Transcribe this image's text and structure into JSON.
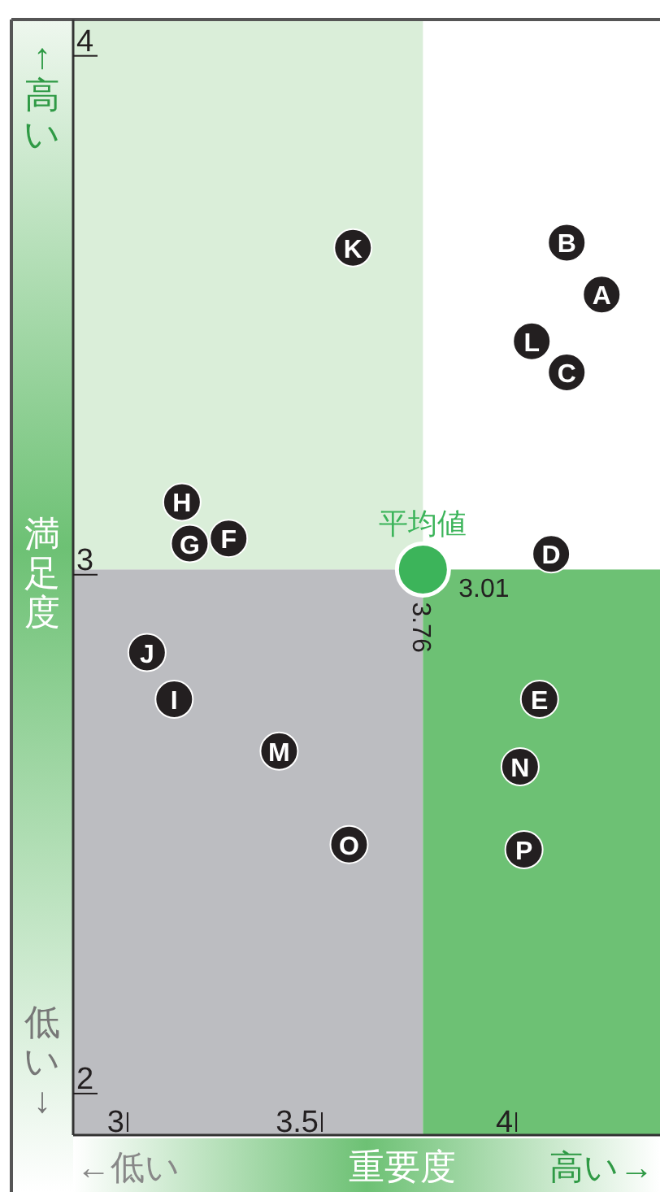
{
  "chart_data": {
    "type": "scatter",
    "xlabel": "重要度",
    "ylabel": "満足度",
    "xlim": [
      2.86,
      4.37
    ],
    "ylim": [
      1.92,
      4.07
    ],
    "xticks": [
      3,
      3.5,
      4
    ],
    "yticks": [
      2,
      3,
      4
    ],
    "marker": "circle",
    "series": [
      {
        "color": "#231f20",
        "x": [
          4.22,
          4.13,
          4.13,
          4.09,
          4.06,
          3.26,
          3.16,
          3.14,
          3.12,
          3.05,
          3.58,
          4.04,
          3.39,
          4.01,
          3.57,
          4.02
        ],
        "values": [
          3.54,
          3.64,
          3.39,
          3.04,
          2.76,
          3.07,
          3.06,
          3.14,
          2.76,
          2.85,
          3.63,
          3.45,
          2.66,
          2.63,
          2.48,
          2.47
        ]
      },
      {
        "name": "平均値",
        "color": "#3cb45a",
        "x": [
          3.76
        ],
        "values": [
          3.01
        ]
      }
    ],
    "annotations": [
      {
        "text": "A",
        "x": 4.22,
        "y": 3.54
      },
      {
        "text": "B",
        "x": 4.13,
        "y": 3.64
      },
      {
        "text": "C",
        "x": 4.13,
        "y": 3.39
      },
      {
        "text": "D",
        "x": 4.09,
        "y": 3.04
      },
      {
        "text": "E",
        "x": 4.06,
        "y": 2.76
      },
      {
        "text": "F",
        "x": 3.26,
        "y": 3.07
      },
      {
        "text": "G",
        "x": 3.16,
        "y": 3.06
      },
      {
        "text": "H",
        "x": 3.14,
        "y": 3.14
      },
      {
        "text": "I",
        "x": 3.12,
        "y": 2.76
      },
      {
        "text": "J",
        "x": 3.05,
        "y": 2.85
      },
      {
        "text": "K",
        "x": 3.58,
        "y": 3.63
      },
      {
        "text": "L",
        "x": 4.04,
        "y": 3.45
      },
      {
        "text": "M",
        "x": 3.39,
        "y": 2.66
      },
      {
        "text": "N",
        "x": 4.01,
        "y": 2.63
      },
      {
        "text": "O",
        "x": 3.57,
        "y": 2.48
      },
      {
        "text": "P",
        "x": 4.02,
        "y": 2.47
      },
      {
        "text": "3.01",
        "x": 3.76,
        "y": 3.01
      },
      {
        "text": "3.76",
        "x": 3.76,
        "y": 3.01
      },
      "↑高い",
      "低い↓",
      "←低い",
      "高い→"
    ]
  }
}
